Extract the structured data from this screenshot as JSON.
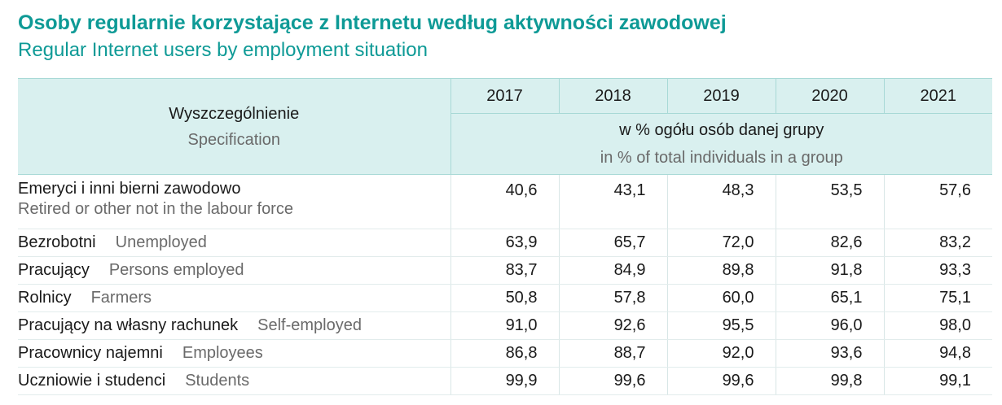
{
  "title": {
    "pl": "Osoby regularnie korzystające z Internetu według aktywności zawodowej",
    "en": "Regular Internet users by employment situation"
  },
  "header": {
    "spec_pl": "Wyszczególnienie",
    "spec_en": "Specification",
    "years": [
      "2017",
      "2018",
      "2019",
      "2020",
      "2021"
    ],
    "unit_pl": "w % ogółu osób danej grupy",
    "unit_en": "in % of total individuals in a group"
  },
  "rows": [
    {
      "pl": "Emeryci i inni bierni zawodowo",
      "en": "Retired or other not in the labour force",
      "values": [
        "40,6",
        "43,1",
        "48,3",
        "53,5",
        "57,6"
      ]
    },
    {
      "pl": "Bezrobotni",
      "en": "Unemployed",
      "values": [
        "63,9",
        "65,7",
        "72,0",
        "82,6",
        "83,2"
      ]
    },
    {
      "pl": "Pracujący",
      "en": "Persons employed",
      "values": [
        "83,7",
        "84,9",
        "89,8",
        "91,8",
        "93,3"
      ]
    },
    {
      "pl": "Rolnicy",
      "en": "Farmers",
      "values": [
        "50,8",
        "57,8",
        "60,0",
        "65,1",
        "75,1"
      ]
    },
    {
      "pl": "Pracujący na własny rachunek",
      "en": "Self-employed",
      "values": [
        "91,0",
        "92,6",
        "95,5",
        "96,0",
        "98,0"
      ]
    },
    {
      "pl": "Pracownicy najemni",
      "en": "Employees",
      "values": [
        "86,8",
        "88,7",
        "92,0",
        "93,6",
        "94,8"
      ]
    },
    {
      "pl": "Uczniowie i studenci",
      "en": "Students",
      "values": [
        "99,9",
        "99,6",
        "99,6",
        "99,8",
        "99,1"
      ]
    }
  ],
  "colors": {
    "accent": "#0e9a96",
    "header_bg": "#d9f0ef"
  }
}
